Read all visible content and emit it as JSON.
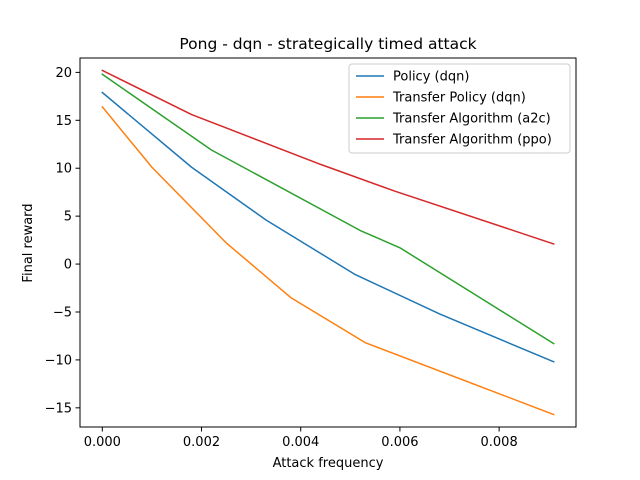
{
  "chart_data": {
    "type": "line",
    "title": "Pong - dqn - strategically timed attack",
    "xlabel": "Attack frequency",
    "ylabel": "Final reward",
    "xlim": [
      -0.00045,
      0.00955
    ],
    "ylim": [
      -17.0,
      21.5
    ],
    "xticks": [
      0.0,
      0.002,
      0.004,
      0.006,
      0.008
    ],
    "xtick_labels": [
      "0.000",
      "0.002",
      "0.004",
      "0.006",
      "0.008"
    ],
    "yticks": [
      -15,
      -10,
      -5,
      0,
      5,
      10,
      15,
      20
    ],
    "ytick_labels": [
      "−15",
      "−10",
      "−5",
      "0",
      "5",
      "10",
      "15",
      "20"
    ],
    "grid": false,
    "legend_position": "upper right",
    "series": [
      {
        "name": "Policy (dqn)",
        "color": "#1f77b4",
        "x": [
          0.0,
          0.0018,
          0.0033,
          0.0051,
          0.0068,
          0.0091
        ],
        "y": [
          17.9,
          10.1,
          4.6,
          -1.1,
          -5.2,
          -10.2
        ]
      },
      {
        "name": "Transfer Policy (dqn)",
        "color": "#ff7f0e",
        "x": [
          0.0,
          0.001,
          0.0025,
          0.0038,
          0.0053,
          0.0091
        ],
        "y": [
          16.4,
          10.1,
          2.2,
          -3.5,
          -8.2,
          -15.7
        ]
      },
      {
        "name": "Transfer Algorithm (a2c)",
        "color": "#2ca02c",
        "x": [
          0.0,
          0.0022,
          0.0052,
          0.006,
          0.0091
        ],
        "y": [
          19.8,
          11.9,
          3.5,
          1.7,
          -8.3
        ]
      },
      {
        "name": "Transfer Algorithm (ppo)",
        "color": "#d62728",
        "x": [
          0.0,
          0.0018,
          0.0044,
          0.0059,
          0.0091
        ],
        "y": [
          20.2,
          15.6,
          10.4,
          7.6,
          2.1
        ]
      }
    ]
  }
}
